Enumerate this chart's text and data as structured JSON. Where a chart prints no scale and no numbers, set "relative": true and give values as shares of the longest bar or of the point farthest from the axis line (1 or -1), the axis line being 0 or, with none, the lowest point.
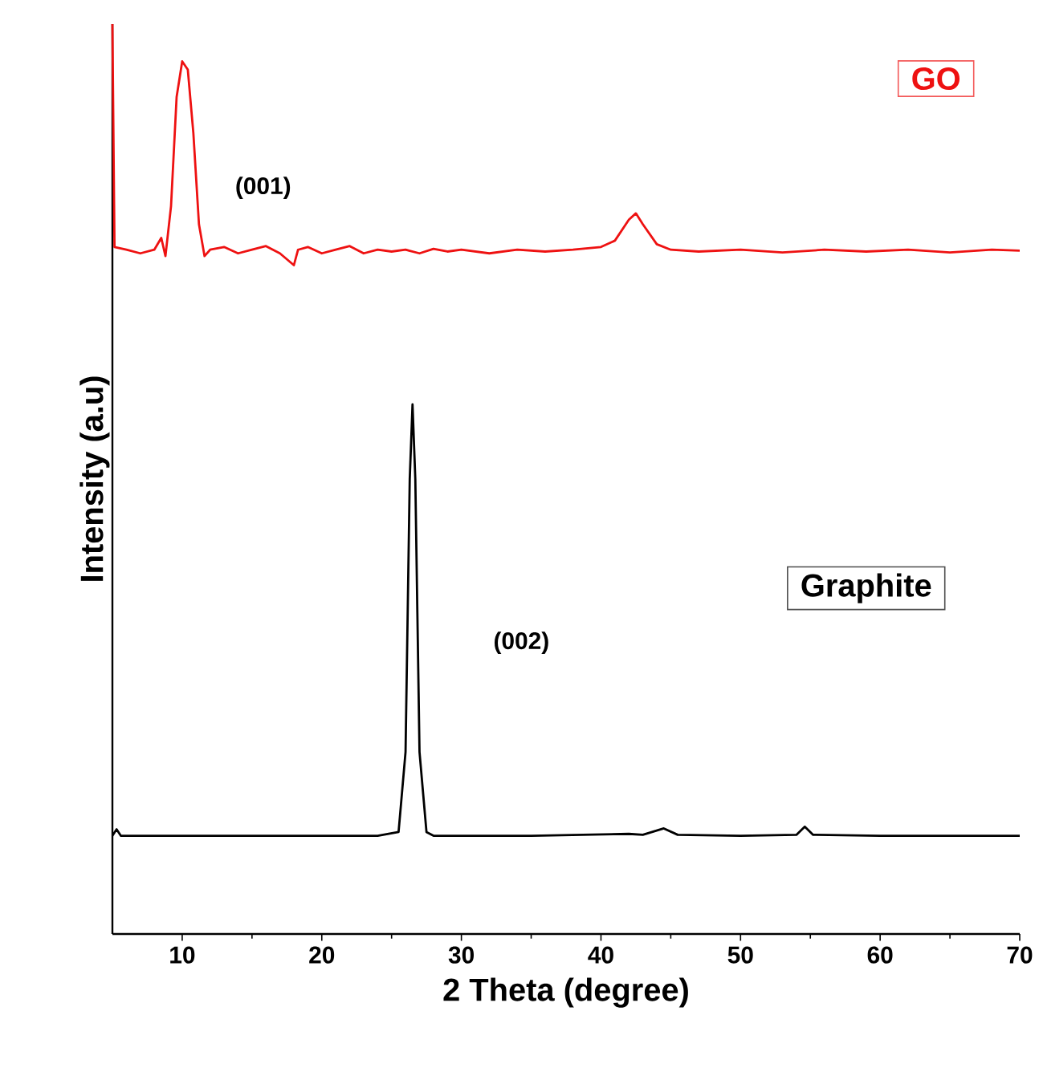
{
  "chart_data": {
    "type": "line",
    "relative": true,
    "xlabel": "2 Theta (degree)",
    "ylabel": "Intensity (a.u)",
    "xlim": [
      5,
      70
    ],
    "xticks": [
      10,
      20,
      30,
      40,
      50,
      60,
      70
    ],
    "grid": false,
    "marker": "none",
    "line_style": "solid",
    "annotations": [
      "(001)",
      "(002)"
    ],
    "series": [
      {
        "name": "GO",
        "color": "#ee1111",
        "x": [
          5,
          5.15,
          6,
          7,
          8,
          8.5,
          8.8,
          9.2,
          9.6,
          10,
          10.4,
          10.8,
          11.2,
          11.6,
          12,
          13,
          14,
          15,
          16,
          17,
          18,
          18.3,
          19,
          20,
          21,
          22,
          23,
          24,
          25,
          26,
          27,
          28,
          29,
          30,
          32,
          34,
          36,
          38,
          40,
          41,
          42,
          42.5,
          43,
          44,
          45,
          47,
          50,
          53,
          56,
          59,
          62,
          65,
          68,
          70
        ],
        "values": [
          1.0,
          0.755,
          0.752,
          0.748,
          0.752,
          0.765,
          0.745,
          0.8,
          0.92,
          0.959,
          0.95,
          0.88,
          0.78,
          0.745,
          0.752,
          0.755,
          0.748,
          0.752,
          0.756,
          0.748,
          0.735,
          0.752,
          0.755,
          0.748,
          0.752,
          0.756,
          0.748,
          0.752,
          0.75,
          0.752,
          0.748,
          0.753,
          0.75,
          0.752,
          0.748,
          0.752,
          0.75,
          0.752,
          0.755,
          0.762,
          0.785,
          0.792,
          0.78,
          0.758,
          0.752,
          0.75,
          0.752,
          0.749,
          0.752,
          0.75,
          0.752,
          0.749,
          0.752,
          0.751
        ]
      },
      {
        "name": "Graphite",
        "color": "#000000",
        "x": [
          5,
          5.3,
          5.6,
          10,
          20,
          24,
          25.5,
          26,
          26.3,
          26.5,
          26.7,
          27,
          27.5,
          28,
          35,
          42,
          43,
          44.5,
          45.5,
          50,
          54,
          54.6,
          55.2,
          60,
          65,
          70
        ],
        "values": [
          0.108,
          0.115,
          0.108,
          0.108,
          0.108,
          0.108,
          0.112,
          0.2,
          0.5,
          0.582,
          0.5,
          0.2,
          0.112,
          0.108,
          0.108,
          0.11,
          0.109,
          0.116,
          0.109,
          0.108,
          0.109,
          0.118,
          0.109,
          0.108,
          0.108,
          0.108
        ]
      }
    ]
  }
}
